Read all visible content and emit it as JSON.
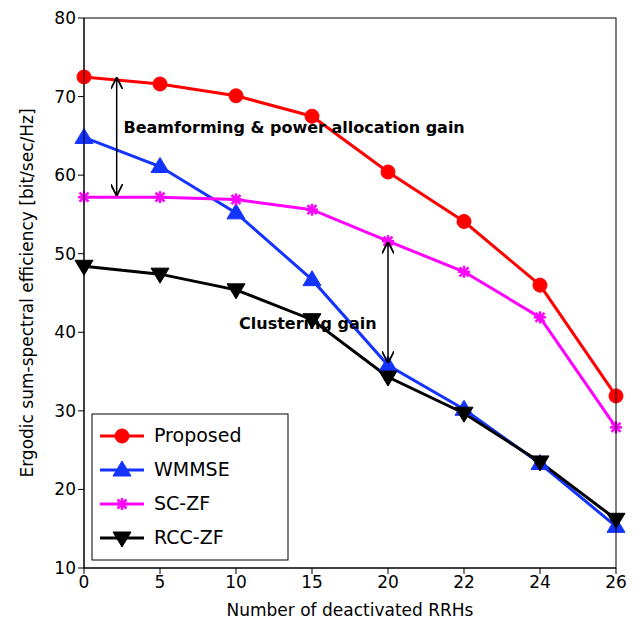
{
  "chart_data": {
    "type": "line",
    "x_label": "Number of deactivated RRHs",
    "y_label": "Ergodic sum-spectral efficiency [bit/sec/Hz]",
    "categories": [
      "0",
      "5",
      "10",
      "15",
      "20",
      "22",
      "24",
      "26"
    ],
    "ylim": [
      10,
      80
    ],
    "yticks": [
      10,
      20,
      30,
      40,
      50,
      60,
      70,
      80
    ],
    "grid": false,
    "legend": "bottom-left",
    "series": [
      {
        "name": "Proposed",
        "color": "#ff0000",
        "marker": "circle",
        "line_style": "solid",
        "values": [
          72.5,
          71.6,
          70.1,
          67.5,
          60.4,
          54.1,
          46.0,
          31.9
        ]
      },
      {
        "name": "WMMSE",
        "color": "#1433ff",
        "marker": "triangle",
        "line_style": "solid",
        "values": [
          64.8,
          61.1,
          55.2,
          46.7,
          35.8,
          30.2,
          23.3,
          15.3
        ]
      },
      {
        "name": "SC-ZF",
        "color": "#ff00ff",
        "marker": "star",
        "line_style": "solid",
        "values": [
          57.2,
          57.2,
          56.9,
          55.6,
          51.6,
          47.7,
          41.9,
          27.9
        ]
      },
      {
        "name": "RCC-ZF",
        "color": "#000000",
        "marker": "triangle-down",
        "line_style": "solid",
        "values": [
          48.4,
          47.4,
          45.4,
          41.6,
          34.3,
          29.7,
          23.5,
          16.2
        ]
      }
    ],
    "annotations": [
      {
        "text": "Beamforming & power allocation gain",
        "x": 0.52,
        "y": 66,
        "align": "start",
        "arrow_x": 0.43,
        "arrow_from": 57.5,
        "arrow_to": 72.3
      },
      {
        "text": "Clustering gain",
        "x": 3.85,
        "y": 41,
        "align": "end",
        "arrow_x": 4,
        "arrow_from": 36.2,
        "arrow_to": 51.4
      }
    ]
  }
}
